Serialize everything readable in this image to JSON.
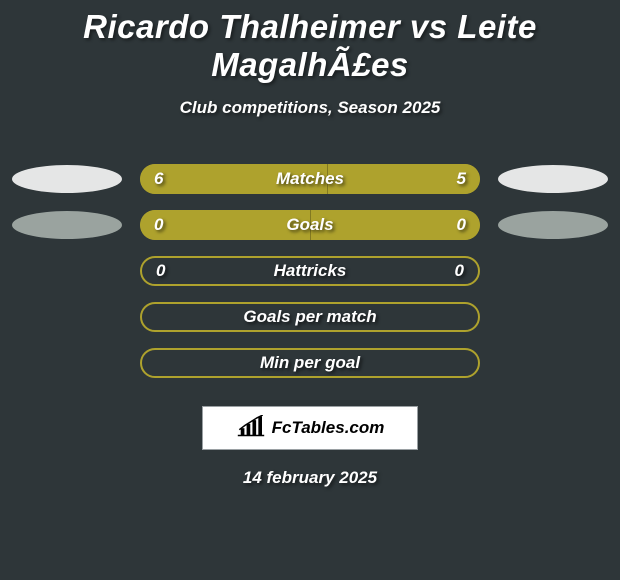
{
  "background_color": "#2e3639",
  "text_color": "#ffffff",
  "title": "Ricardo Thalheimer vs Leite MagalhÃ£es",
  "subtitle": "Club competitions, Season 2025",
  "date": "14 february 2025",
  "brand": {
    "text": "FcTables.com"
  },
  "colors": {
    "bar_fill": "#aea22d",
    "bar_empty_border": "#aea22d",
    "oval_light": "#e5e6e6",
    "oval_dark": "#9aa39f"
  },
  "rows": [
    {
      "label": "Matches",
      "left_val": "6",
      "right_val": "5",
      "left_pct": 55,
      "right_pct": 45,
      "filled": true,
      "show_oval": true,
      "left_oval": "light",
      "right_oval": "light"
    },
    {
      "label": "Goals",
      "left_val": "0",
      "right_val": "0",
      "left_pct": 50,
      "right_pct": 50,
      "filled": true,
      "show_oval": true,
      "left_oval": "dark",
      "right_oval": "dark"
    },
    {
      "label": "Hattricks",
      "left_val": "0",
      "right_val": "0",
      "left_pct": 0,
      "right_pct": 0,
      "filled": false,
      "show_oval": false
    },
    {
      "label": "Goals per match",
      "left_val": "",
      "right_val": "",
      "left_pct": 0,
      "right_pct": 0,
      "filled": false,
      "show_oval": false
    },
    {
      "label": "Min per goal",
      "left_val": "",
      "right_val": "",
      "left_pct": 0,
      "right_pct": 0,
      "filled": false,
      "show_oval": false
    }
  ]
}
